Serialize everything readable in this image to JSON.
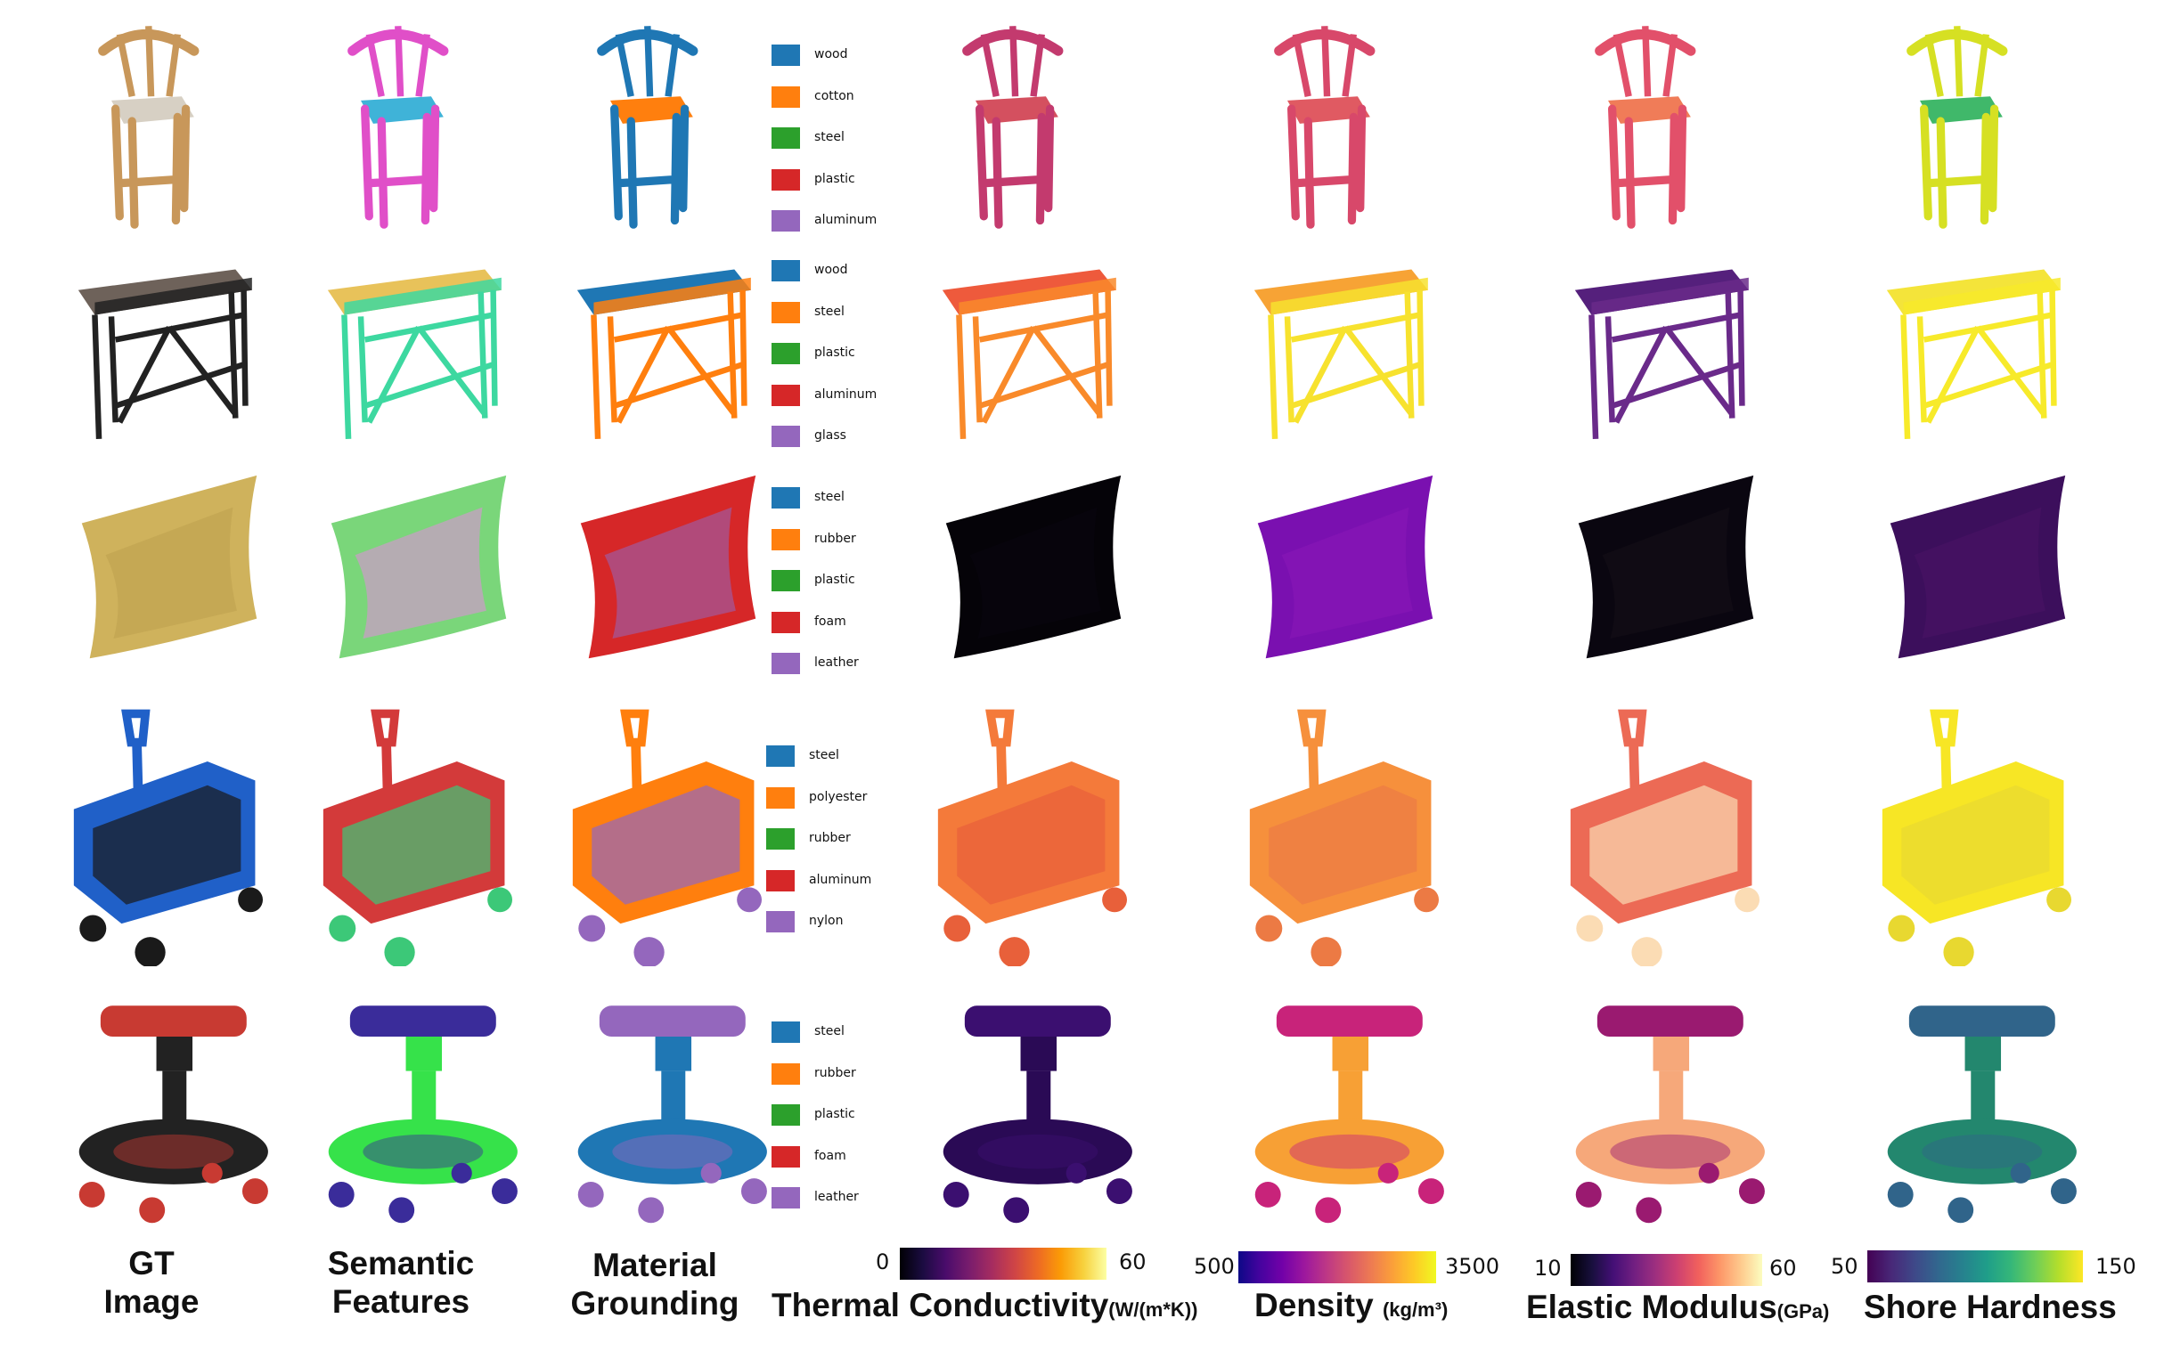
{
  "columns": {
    "gt": "GT\nImage",
    "semantic": "Semantic\nFeatures",
    "material": "Material\nGrounding"
  },
  "rows": [
    {
      "object": "chair",
      "legend": [
        {
          "label": "wood",
          "color": "#1f77b4"
        },
        {
          "label": "cotton",
          "color": "#ff7f0e"
        },
        {
          "label": "steel",
          "color": "#2ca02c"
        },
        {
          "label": "plastic",
          "color": "#d62728"
        },
        {
          "label": "aluminum",
          "color": "#9467bd"
        }
      ],
      "colors": {
        "gt": "#c8975a",
        "gt2": "#d7d0c4",
        "semantic": "#e04fc8",
        "semantic2": "#3fb3d8",
        "material": "#1f77b4",
        "material2": "#ff7f0e",
        "thermal": "#c33a6e",
        "thermal2": "#d4505f",
        "density": "#d8486a",
        "density2": "#e05a62",
        "elastic": "#e2506a",
        "elastic2": "#f07c58",
        "hardness": "#d6e023",
        "hardness2": "#40b86a"
      }
    },
    {
      "object": "desk",
      "legend": [
        {
          "label": "wood",
          "color": "#1f77b4"
        },
        {
          "label": "steel",
          "color": "#ff7f0e"
        },
        {
          "label": "plastic",
          "color": "#2ca02c"
        },
        {
          "label": "aluminum",
          "color": "#d62728"
        },
        {
          "label": "glass",
          "color": "#9467bd"
        }
      ],
      "colors": {
        "gt": "#222222",
        "gt2": "#6e625a",
        "semantic": "#3dd8a0",
        "semantic2": "#e8c25a",
        "material": "#ff7f0e",
        "material2": "#1f77b4",
        "thermal": "#f98a2a",
        "thermal2": "#ee5a3c",
        "density": "#f7e22e",
        "density2": "#f7a335",
        "elastic": "#6a2a8a",
        "elastic2": "#55207c",
        "hardness": "#f7ea2a",
        "hardness2": "#f4e43a"
      }
    },
    {
      "object": "pillow",
      "legend": [
        {
          "label": "steel",
          "color": "#1f77b4"
        },
        {
          "label": "rubber",
          "color": "#ff7f0e"
        },
        {
          "label": "plastic",
          "color": "#2ca02c"
        },
        {
          "label": "foam",
          "color": "#d62728"
        },
        {
          "label": "leather",
          "color": "#9467bd"
        }
      ],
      "colors": {
        "gt": "#cfb25c",
        "gt2": "#bda04f",
        "semantic": "#7ad67a",
        "semantic2": "#e58be0",
        "material": "#d62728",
        "material2": "#9467bd",
        "thermal": "#050308",
        "thermal2": "#0a0610",
        "density": "#7a10b0",
        "density2": "#8a18b8",
        "elastic": "#0a0610",
        "elastic2": "#151018",
        "hardness": "#3c0f5c",
        "hardness2": "#4a1466"
      }
    },
    {
      "object": "wagon",
      "legend": [
        {
          "label": "steel",
          "color": "#1f77b4"
        },
        {
          "label": "polyester",
          "color": "#ff7f0e"
        },
        {
          "label": "rubber",
          "color": "#2ca02c"
        },
        {
          "label": "aluminum",
          "color": "#d62728"
        },
        {
          "label": "nylon",
          "color": "#9467bd"
        }
      ],
      "colors": {
        "gt": "#2060c8",
        "gt2": "#1a1a1a",
        "semantic": "#d33a3a",
        "semantic2": "#3cc878",
        "material": "#ff7f0e",
        "material2": "#9467bd",
        "thermal": "#f47a3a",
        "thermal2": "#e8603a",
        "density": "#f6903c",
        "density2": "#ec7a44",
        "elastic": "#ec6a55",
        "elastic2": "#fbdcb4",
        "hardness": "#f7e625",
        "hardness2": "#e8d830"
      }
    },
    {
      "object": "stool",
      "legend": [
        {
          "label": "steel",
          "color": "#1f77b4"
        },
        {
          "label": "rubber",
          "color": "#ff7f0e"
        },
        {
          "label": "plastic",
          "color": "#2ca02c"
        },
        {
          "label": "foam",
          "color": "#d62728"
        },
        {
          "label": "leather",
          "color": "#9467bd"
        }
      ],
      "colors": {
        "gt": "#222222",
        "gt2": "#c83a32",
        "semantic": "#36e24a",
        "semantic2": "#3a2c9a",
        "material": "#1f77b4",
        "material2": "#9467bd",
        "thermal": "#2a0a55",
        "thermal2": "#3b0f70",
        "density": "#f7a035",
        "density2": "#c8237a",
        "elastic": "#f6a87a",
        "elastic2": "#9a1a70",
        "hardness": "#23876e",
        "hardness2": "#30648a"
      }
    }
  ],
  "colorbars": [
    {
      "min": "0",
      "max": "60",
      "title": "Thermal Conductivity",
      "unit": "(W/(m*K))",
      "colormap": "inferno"
    },
    {
      "min": "500",
      "max": "3500",
      "title": "Density ",
      "unit": "(kg/m³)",
      "colormap": "plasma"
    },
    {
      "min": "10",
      "max": "60",
      "title": "Elastic Modulus",
      "unit": "(GPa)",
      "colormap": "magma"
    },
    {
      "min": "50",
      "max": "150",
      "title": "Shore Hardness",
      "unit": "",
      "colormap": "viridis"
    }
  ]
}
